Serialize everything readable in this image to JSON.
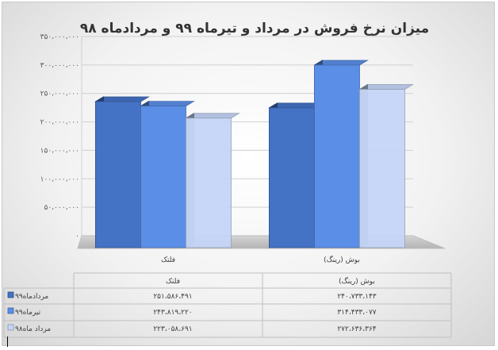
{
  "chart_data": {
    "type": "bar",
    "title": "میزان نرخ فروش در مرداد و تیرماه ۹۹ و مردادماه ۹۸",
    "categories": [
      "فلتک",
      "بوش (رینگ)"
    ],
    "category_labels_axis": [
      "فلتک",
      "بوش (رینگ)"
    ],
    "series": [
      {
        "name": "مردادماه۹۹",
        "values": [
          251586491,
          240733143
        ],
        "values_text": [
          "۲۵۱،۵۸۶،۴۹۱",
          "۲۴۰،۷۳۳،۱۴۳"
        ],
        "color": "#4472c4"
      },
      {
        "name": "تیرماه۹۹",
        "values": [
          243819220,
          314433077
        ],
        "values_text": [
          "۲۴۳،۸۱۹،۲۲۰",
          "۳۱۴،۴۳۳،۰۷۷"
        ],
        "color": "#5b8ee6"
      },
      {
        "name": "مرداد ماه۹۸",
        "values": [
          223058691,
          272636364
        ],
        "values_text": [
          "۲۲۳،۰۵۸،۶۹۱",
          "۲۷۲،۶۳۶،۳۶۴"
        ],
        "color": "#c5d5f7"
      }
    ],
    "yticks": [
      0,
      50000000,
      100000000,
      150000000,
      200000000,
      250000000,
      300000000,
      350000000
    ],
    "ytick_labels": [
      "۰",
      "۵۰،۰۰۰،۰۰۰",
      "۱۰۰،۰۰۰،۰۰۰",
      "۱۵۰،۰۰۰،۰۰۰",
      "۲۰۰،۰۰۰،۰۰۰",
      "۲۵۰،۰۰۰،۰۰۰",
      "۳۰۰،۰۰۰،۰۰۰",
      "۳۵۰،۰۰۰،۰۰۰"
    ],
    "ylim": [
      0,
      350000000
    ],
    "xlabel": "",
    "ylabel": "",
    "grid": true,
    "legend": "data-table-below"
  }
}
